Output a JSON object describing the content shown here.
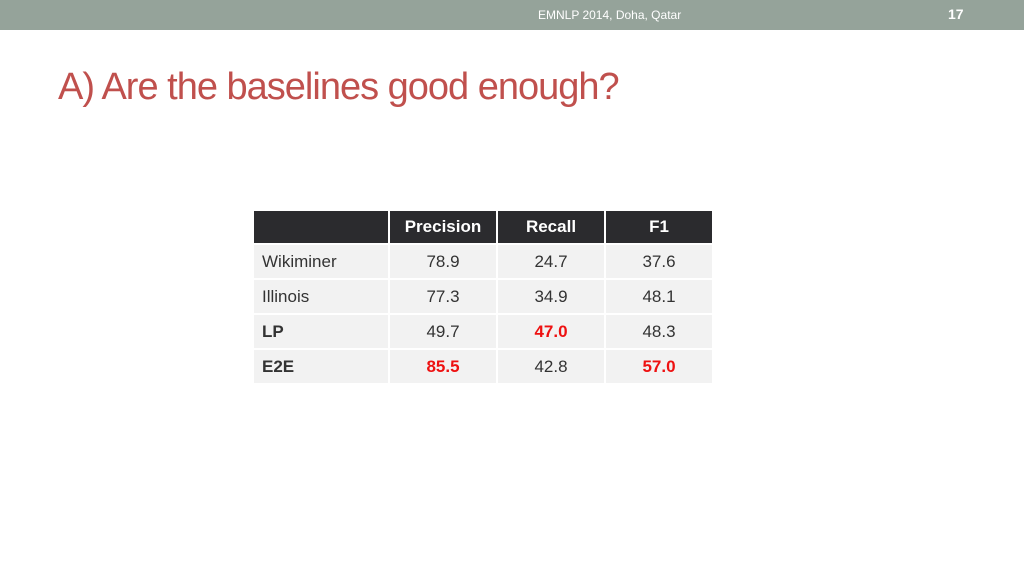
{
  "header": {
    "conference": "EMNLP 2014, Doha, Qatar",
    "page_number": "17"
  },
  "title": "A) Are the baselines good enough?",
  "table": {
    "corner": "",
    "columns": [
      "Precision",
      "Recall",
      "F1"
    ],
    "rows": [
      {
        "label": "Wikiminer",
        "label_bold": false,
        "values": [
          "78.9",
          "24.7",
          "37.6"
        ],
        "best": [
          false,
          false,
          false
        ]
      },
      {
        "label": "Illinois",
        "label_bold": false,
        "values": [
          "77.3",
          "34.9",
          "48.1"
        ],
        "best": [
          false,
          false,
          false
        ]
      },
      {
        "label": "LP",
        "label_bold": true,
        "values": [
          "49.7",
          "47.0",
          "48.3"
        ],
        "best": [
          false,
          true,
          false
        ]
      },
      {
        "label": "E2E",
        "label_bold": true,
        "values": [
          "85.5",
          "42.8",
          "57.0"
        ],
        "best": [
          true,
          false,
          true
        ]
      }
    ],
    "colors": {
      "header_bg": "#2b2b2e",
      "cell_bg": "#f2f2f2",
      "best_value": "#ee1111",
      "title": "#c0504d",
      "top_bar": "#95a39a"
    }
  }
}
